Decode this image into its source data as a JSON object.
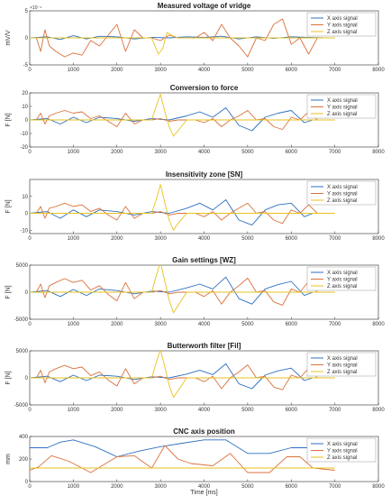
{
  "colors": {
    "x": "#2e6fc0",
    "y": "#d9723b",
    "z": "#e7c21f",
    "axis": "#2b2b2b"
  },
  "chart_data": [
    {
      "type": "line",
      "title": "Measured voltage of vridge",
      "ylabel": "mV/V",
      "xlabel": "",
      "exponent": "×10⁻⁴",
      "xlim": [
        0,
        8000
      ],
      "ylim": [
        -5,
        5
      ],
      "xticks": [
        0,
        1000,
        2000,
        3000,
        4000,
        5000,
        6000,
        7000,
        8000
      ],
      "yticks": [
        -5,
        0,
        5
      ],
      "legend": [
        "X axis signal",
        "Y axis signal",
        "Z axis signal"
      ],
      "legend_position": "top-right",
      "series": [
        {
          "name": "X axis signal",
          "x": [
            0,
            400,
            700,
            1000,
            1300,
            1600,
            2000,
            2400,
            2800,
            3200,
            3600,
            4000,
            4400,
            4800,
            5200,
            5600,
            6000,
            6400,
            6800,
            7000
          ],
          "y": [
            0,
            0.2,
            -0.3,
            0.4,
            -0.2,
            0.3,
            0.2,
            -0.2,
            0.1,
            0,
            0.2,
            0.1,
            0.3,
            -0.2,
            0.2,
            -0.1,
            0.2,
            0.1,
            0,
            0
          ]
        },
        {
          "name": "Y axis signal",
          "x": [
            0,
            150,
            250,
            350,
            450,
            600,
            800,
            1000,
            1200,
            1400,
            1600,
            1800,
            2000,
            2200,
            2400,
            2600,
            2800,
            3000,
            3200,
            3400,
            3600,
            3800,
            4000,
            4200,
            4400,
            4600,
            4800,
            5000,
            5200,
            5400,
            5600,
            5800,
            6000,
            6200,
            6400,
            6600,
            6800,
            7000
          ],
          "y": [
            0,
            0,
            -2.5,
            1.5,
            -1.5,
            -2.5,
            -3.5,
            -2.8,
            -3.2,
            -0.5,
            -1.5,
            0.5,
            2.5,
            -2.5,
            1.5,
            0,
            0,
            -0.5,
            0.5,
            0,
            0,
            0,
            1,
            -0.5,
            2.5,
            0,
            -1.5,
            -3.5,
            0,
            -0.5,
            2.5,
            3.5,
            -1.2,
            0,
            -3,
            0,
            0,
            0
          ]
        },
        {
          "name": "Z axis signal",
          "x": [
            0,
            2800,
            2950,
            3050,
            3150,
            3250,
            3400,
            3600,
            7000
          ],
          "y": [
            0,
            0,
            -3,
            -2,
            1,
            0.5,
            0,
            0,
            0
          ]
        }
      ]
    },
    {
      "type": "line",
      "title": "Conversion to force",
      "ylabel": "F [N]",
      "xlabel": "",
      "xlim": [
        0,
        8000
      ],
      "ylim": [
        -20,
        20
      ],
      "xticks": [
        0,
        1000,
        2000,
        3000,
        4000,
        5000,
        6000,
        7000,
        8000
      ],
      "yticks": [
        -20,
        -10,
        0,
        10,
        20
      ],
      "legend": [
        "X axis signal",
        "Y axis signal",
        "Z axis signal"
      ],
      "legend_position": "top-right",
      "series": [
        {
          "name": "X axis signal",
          "x": [
            0,
            400,
            700,
            1000,
            1300,
            1600,
            2000,
            2400,
            2800,
            3200,
            3600,
            3900,
            4200,
            4500,
            4800,
            5100,
            5400,
            5700,
            6000,
            6300,
            6500,
            7000
          ],
          "y": [
            0,
            1,
            -3,
            2,
            -2,
            2,
            1,
            -1,
            1,
            0,
            3,
            6,
            2,
            9,
            -4,
            -8,
            2,
            5,
            7,
            -2,
            0,
            0
          ]
        },
        {
          "name": "Y axis signal",
          "x": [
            0,
            150,
            250,
            350,
            450,
            600,
            800,
            1000,
            1200,
            1400,
            1600,
            1800,
            2000,
            2200,
            2400,
            2600,
            2800,
            3000,
            3200,
            3400,
            3600,
            3800,
            4000,
            4200,
            4400,
            4600,
            4800,
            5000,
            5200,
            5400,
            5600,
            5800,
            6000,
            6200,
            6400,
            6600,
            7000
          ],
          "y": [
            0,
            0,
            5,
            -3,
            3,
            5,
            7,
            5,
            6,
            1,
            3,
            -1,
            -5,
            5,
            -3,
            0,
            0,
            1,
            -1,
            0,
            0,
            0,
            -2,
            1,
            -5,
            0,
            3,
            7,
            0,
            1,
            -5,
            -7,
            2,
            0,
            6,
            0,
            0
          ]
        },
        {
          "name": "Z axis signal",
          "x": [
            0,
            2800,
            2900,
            3000,
            3100,
            3200,
            3300,
            3400,
            3600,
            7000
          ],
          "y": [
            0,
            0,
            10,
            19,
            6,
            -5,
            -12,
            -8,
            0,
            0
          ]
        }
      ]
    },
    {
      "type": "line",
      "title": "Insensitivity zone [SN]",
      "ylabel": "F [N]",
      "xlabel": "",
      "xlim": [
        0,
        8000
      ],
      "ylim": [
        -12,
        20
      ],
      "xticks": [
        0,
        1000,
        2000,
        3000,
        4000,
        5000,
        6000,
        7000,
        8000
      ],
      "yticks": [
        -10,
        0,
        10
      ],
      "legend": [
        "X axis signal",
        "Y axis signal",
        "Z axis signal"
      ],
      "legend_position": "top-right",
      "series": [
        {
          "name": "X axis signal",
          "x": [
            0,
            400,
            700,
            1000,
            1300,
            1600,
            2000,
            2400,
            2800,
            3200,
            3600,
            3900,
            4200,
            4500,
            4800,
            5100,
            5400,
            5700,
            6000,
            6300,
            6500,
            7000
          ],
          "y": [
            0,
            1,
            -3,
            2,
            -2,
            2,
            1,
            -1,
            1,
            0,
            3,
            6,
            2,
            8,
            -4,
            -7,
            2,
            5,
            6,
            -2,
            0,
            0
          ]
        },
        {
          "name": "Y axis signal",
          "x": [
            0,
            150,
            250,
            350,
            450,
            600,
            800,
            1000,
            1200,
            1400,
            1600,
            1800,
            2000,
            2200,
            2400,
            2600,
            2800,
            3000,
            3200,
            3400,
            3600,
            3800,
            4000,
            4200,
            4400,
            4600,
            4800,
            5000,
            5200,
            5400,
            5600,
            5800,
            6000,
            6200,
            6400,
            6600,
            7000
          ],
          "y": [
            0,
            0,
            4,
            -3,
            3,
            4,
            6,
            4,
            5,
            1,
            3,
            -1,
            -4,
            4,
            -3,
            0,
            0,
            1,
            -1,
            0,
            0,
            0,
            -2,
            1,
            -4,
            0,
            3,
            6,
            0,
            1,
            -4,
            -6,
            2,
            0,
            5,
            0,
            0
          ]
        },
        {
          "name": "Z axis signal",
          "x": [
            0,
            2800,
            2900,
            3000,
            3100,
            3200,
            3300,
            3400,
            3600,
            7000
          ],
          "y": [
            0,
            0,
            8,
            17,
            6,
            -4,
            -10,
            -6,
            0,
            0
          ]
        }
      ]
    },
    {
      "type": "line",
      "title": "Gain settings [WZ]",
      "ylabel": "F [N]",
      "xlabel": "",
      "xlim": [
        0,
        8000
      ],
      "ylim": [
        -5000,
        5000
      ],
      "xticks": [
        0,
        1000,
        2000,
        3000,
        4000,
        5000,
        6000,
        7000,
        8000
      ],
      "yticks": [
        -5000,
        0,
        5000
      ],
      "legend": [
        "X axis signal",
        "Y axis signal",
        "Z axis signal"
      ],
      "legend_position": "top-right",
      "series": [
        {
          "name": "X axis signal",
          "x": [
            0,
            400,
            700,
            1000,
            1300,
            1600,
            2000,
            2400,
            2800,
            3200,
            3600,
            3900,
            4200,
            4500,
            4800,
            5100,
            5400,
            5700,
            6000,
            6300,
            6500,
            7000
          ],
          "y": [
            0,
            300,
            -800,
            500,
            -600,
            600,
            300,
            -300,
            200,
            0,
            800,
            1500,
            600,
            2800,
            -1200,
            -2200,
            600,
            1400,
            2000,
            -600,
            0,
            0
          ]
        },
        {
          "name": "Y axis signal",
          "x": [
            0,
            150,
            250,
            350,
            450,
            600,
            800,
            1000,
            1200,
            1400,
            1600,
            1800,
            2000,
            2200,
            2400,
            2600,
            2800,
            3000,
            3200,
            3400,
            3600,
            3800,
            4000,
            4200,
            4400,
            4600,
            4800,
            5000,
            5200,
            5400,
            5600,
            5800,
            6000,
            6200,
            6400,
            6600,
            7000
          ],
          "y": [
            0,
            0,
            1500,
            -1000,
            1200,
            1800,
            2500,
            1800,
            2200,
            400,
            1200,
            -400,
            -1600,
            1800,
            -1200,
            0,
            0,
            300,
            -300,
            0,
            0,
            0,
            -800,
            300,
            -2200,
            0,
            1200,
            2600,
            0,
            300,
            -1800,
            -2400,
            600,
            0,
            2000,
            0,
            0
          ]
        },
        {
          "name": "Z axis signal",
          "x": [
            0,
            2800,
            2900,
            3000,
            3100,
            3200,
            3300,
            3400,
            3600,
            7000
          ],
          "y": [
            0,
            0,
            3000,
            5500,
            2000,
            -1500,
            -3800,
            -2500,
            0,
            0
          ]
        }
      ]
    },
    {
      "type": "line",
      "title": "Butterworth filter [Fil]",
      "ylabel": "F [N]",
      "xlabel": "",
      "xlim": [
        0,
        8000
      ],
      "ylim": [
        -5000,
        5000
      ],
      "xticks": [
        0,
        1000,
        2000,
        3000,
        4000,
        5000,
        6000,
        7000,
        8000
      ],
      "yticks": [
        -5000,
        0,
        5000
      ],
      "legend": [
        "X axis signal",
        "Y axis signal",
        "Z axis signal"
      ],
      "legend_position": "top-right",
      "series": [
        {
          "name": "X axis signal",
          "x": [
            0,
            400,
            700,
            1000,
            1300,
            1600,
            2000,
            2400,
            2800,
            3200,
            3600,
            3900,
            4200,
            4500,
            4800,
            5100,
            5400,
            5700,
            6000,
            6300,
            6500,
            7000
          ],
          "y": [
            0,
            300,
            -700,
            500,
            -500,
            500,
            300,
            -300,
            200,
            0,
            700,
            1400,
            600,
            2600,
            -1100,
            -2000,
            500,
            1300,
            1800,
            -500,
            0,
            0
          ]
        },
        {
          "name": "Y axis signal",
          "x": [
            0,
            150,
            250,
            350,
            450,
            600,
            800,
            1000,
            1200,
            1400,
            1600,
            1800,
            2000,
            2200,
            2400,
            2600,
            2800,
            3000,
            3200,
            3400,
            3600,
            3800,
            4000,
            4200,
            4400,
            4600,
            4800,
            5000,
            5200,
            5400,
            5600,
            5800,
            6000,
            6200,
            6400,
            6600,
            7000
          ],
          "y": [
            0,
            0,
            1400,
            -900,
            1100,
            1700,
            2300,
            1700,
            2000,
            400,
            1100,
            -400,
            -1500,
            1700,
            -1100,
            0,
            0,
            300,
            -300,
            0,
            0,
            0,
            -700,
            300,
            -2000,
            0,
            1100,
            2400,
            0,
            300,
            -1700,
            -2200,
            500,
            0,
            1800,
            0,
            0
          ]
        },
        {
          "name": "Z axis signal",
          "x": [
            0,
            2800,
            2900,
            3000,
            3100,
            3200,
            3300,
            3400,
            3600,
            7000
          ],
          "y": [
            0,
            0,
            2800,
            5200,
            2000,
            -1400,
            -3600,
            -2400,
            0,
            0
          ]
        }
      ]
    },
    {
      "type": "line",
      "title": "CNC axis position",
      "ylabel": "mm",
      "xlabel": "Time [ms]",
      "xlim": [
        0,
        8000
      ],
      "ylim": [
        0,
        400
      ],
      "xticks": [
        0,
        1000,
        2000,
        3000,
        4000,
        5000,
        6000,
        7000,
        8000
      ],
      "yticks": [
        0,
        200,
        400
      ],
      "legend": [
        "X axis signal",
        "Y axis signal",
        "Z axis signal"
      ],
      "legend_position": "top-right",
      "series": [
        {
          "name": "X axis signal",
          "x": [
            0,
            400,
            700,
            1000,
            1500,
            2000,
            2500,
            3000,
            3500,
            4000,
            4500,
            5000,
            5500,
            6000,
            6500,
            7000
          ],
          "y": [
            300,
            300,
            350,
            370,
            310,
            220,
            270,
            310,
            340,
            370,
            370,
            250,
            250,
            300,
            300,
            300
          ]
        },
        {
          "name": "Y axis signal",
          "x": [
            0,
            200,
            500,
            900,
            1400,
            2000,
            2400,
            2800,
            3100,
            3400,
            3700,
            4200,
            4600,
            5000,
            5500,
            5900,
            6200,
            6500,
            7000
          ],
          "y": [
            100,
            130,
            230,
            180,
            80,
            220,
            230,
            120,
            320,
            200,
            160,
            140,
            250,
            80,
            80,
            220,
            220,
            120,
            100
          ]
        },
        {
          "name": "Z axis signal",
          "x": [
            0,
            7000
          ],
          "y": [
            120,
            120
          ]
        }
      ]
    }
  ]
}
